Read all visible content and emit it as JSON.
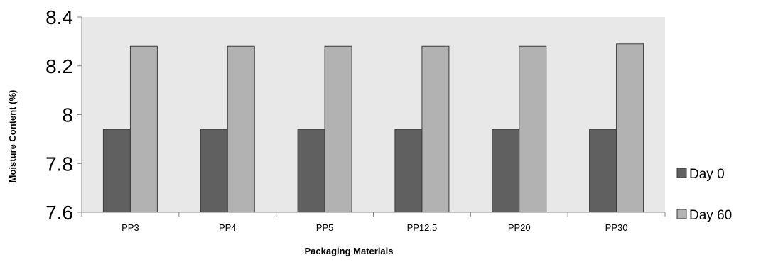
{
  "chart_data": {
    "type": "bar",
    "title": "",
    "xlabel": "Packaging Materials",
    "ylabel": "Moisture Content (%)",
    "ylim": [
      7.6,
      8.4
    ],
    "yticks": [
      7.6,
      7.8,
      8,
      8.2,
      8.4
    ],
    "ytick_labels": [
      "7.6",
      "7.8",
      "8",
      "8.2",
      "8.4"
    ],
    "categories": [
      "PP3",
      "PP4",
      "PP5",
      "PP12.5",
      "PP20",
      "PP30"
    ],
    "series": [
      {
        "name": "Day 0",
        "color": "#606060",
        "values": [
          7.94,
          7.94,
          7.94,
          7.94,
          7.94,
          7.94
        ]
      },
      {
        "name": "Day 60",
        "color": "#b2b2b2",
        "values": [
          8.28,
          8.28,
          8.28,
          8.28,
          8.28,
          8.29
        ]
      }
    ],
    "plot_background": "#e8e8e8",
    "grid": false,
    "legend_position": "right"
  }
}
